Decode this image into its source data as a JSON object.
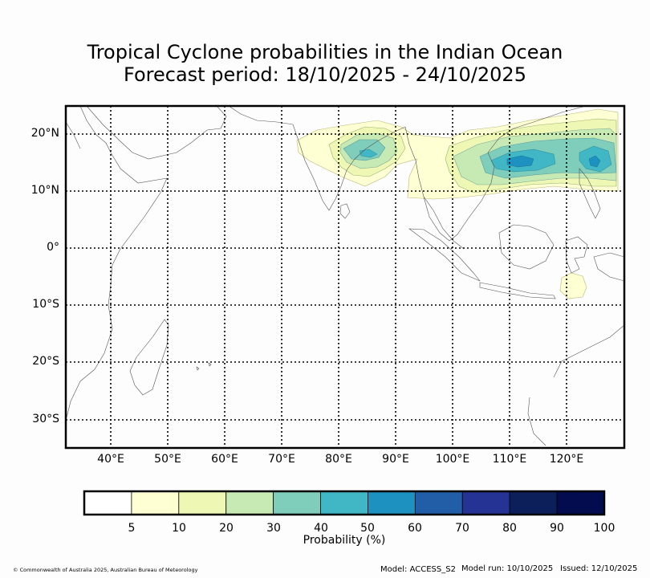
{
  "title": {
    "line1": "Tropical Cyclone probabilities in the Indian Ocean",
    "line2": "Forecast period: 18/10/2025 - 24/10/2025"
  },
  "axes": {
    "lat_labels": [
      "20°N",
      "10°N",
      "0°",
      "10°S",
      "20°S",
      "30°S"
    ],
    "lon_labels": [
      "40°E",
      "50°E",
      "60°E",
      "70°E",
      "80°E",
      "90°E",
      "100°E",
      "110°E",
      "120°E"
    ]
  },
  "colorbar": {
    "label": "Probability (%)",
    "ticks": [
      "5",
      "10",
      "20",
      "30",
      "40",
      "50",
      "60",
      "70",
      "80",
      "90",
      "100"
    ],
    "colors": [
      "#ffffff",
      "#ffffd4",
      "#eef8b4",
      "#c7e9b4",
      "#7fcdbb",
      "#41b6c4",
      "#1d91c0",
      "#225ea8",
      "#253494",
      "#0c1f5a",
      "#040c50"
    ]
  },
  "footer": {
    "copyright": "© Commonwealth of Australia 2025, Australian Bureau of Meteorology",
    "model": "Model: ACCESS_S2",
    "model_run": "Model run: 10/10/2025",
    "issued": "Issued: 12/10/2025"
  }
}
